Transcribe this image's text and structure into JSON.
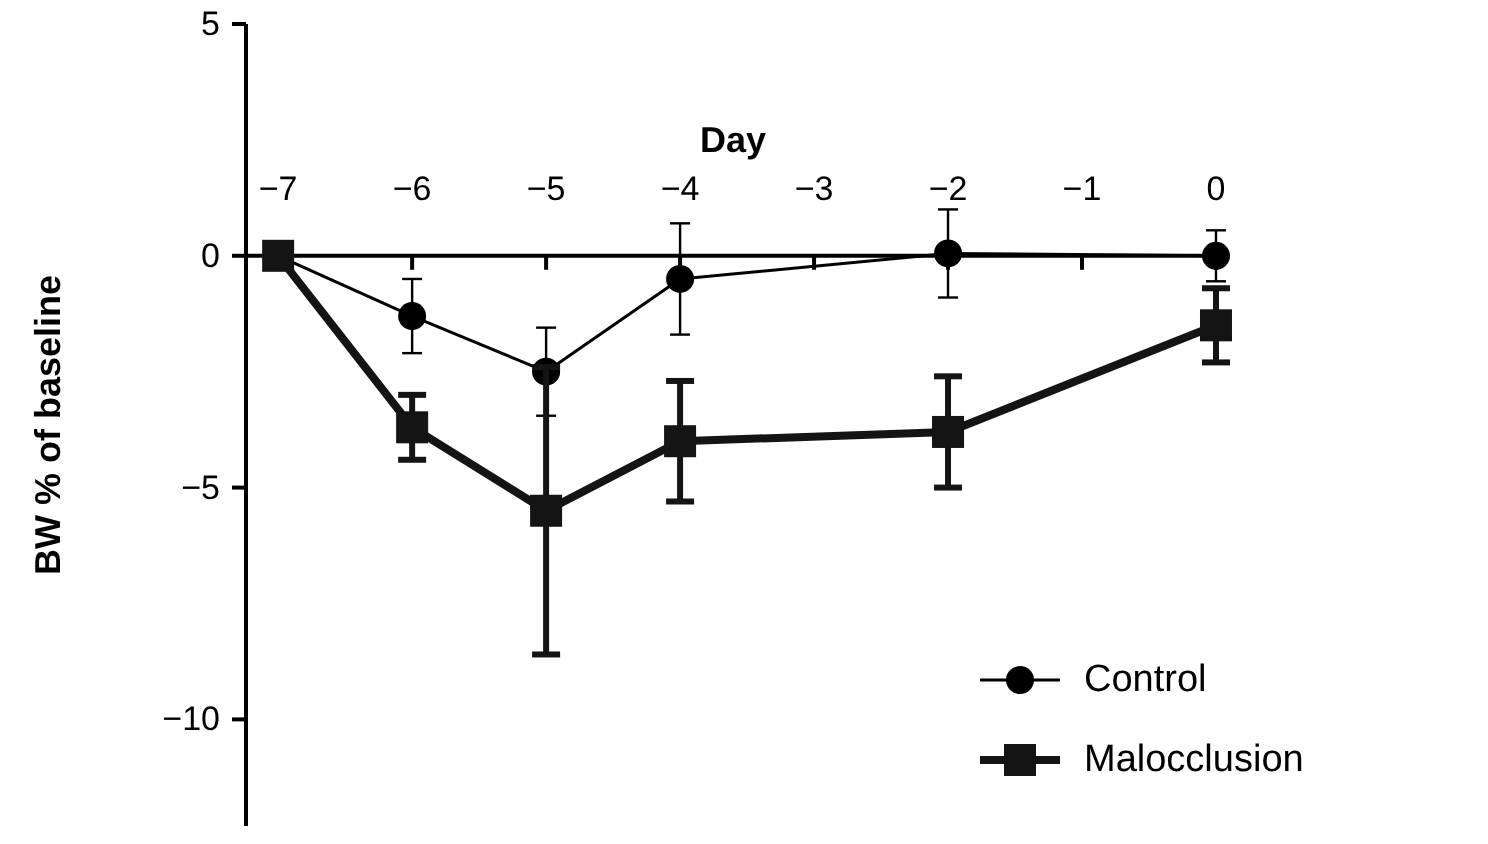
{
  "chart_data": {
    "type": "line",
    "xlabel": "Day",
    "ylabel": "BW % of baseline",
    "x": [
      -7,
      -6,
      -5,
      -4,
      -2,
      0
    ],
    "xlim": [
      -7.24,
      0.03
    ],
    "ylim": [
      -12.3,
      5
    ],
    "xticks": [
      {
        "value": -7,
        "label": "−7"
      },
      {
        "value": -6,
        "label": "−6"
      },
      {
        "value": -5,
        "label": "−5"
      },
      {
        "value": -4,
        "label": "−4"
      },
      {
        "value": -3,
        "label": "−3"
      },
      {
        "value": -2,
        "label": "−2"
      },
      {
        "value": -1,
        "label": "−1"
      },
      0
    ],
    "yticks": [
      5,
      0,
      {
        "value": -5,
        "label": "−5"
      },
      {
        "value": -10,
        "label": "−10"
      }
    ],
    "series": [
      {
        "name": "Control",
        "color": "#000000",
        "marker": "circle",
        "values": [
          0,
          -1.3,
          -2.5,
          -0.5,
          0.05,
          0
        ],
        "errors": [
          null,
          0.8,
          0.95,
          1.2,
          0.95,
          0.55
        ]
      },
      {
        "name": "Malocclusion",
        "color": "#141414",
        "marker": "square",
        "values": [
          0,
          -3.7,
          -5.5,
          -4.0,
          -3.8,
          -1.5
        ],
        "errors": [
          null,
          0.7,
          3.1,
          1.3,
          1.2,
          0.8
        ]
      }
    ],
    "legend": "bottom right",
    "grid": false
  }
}
